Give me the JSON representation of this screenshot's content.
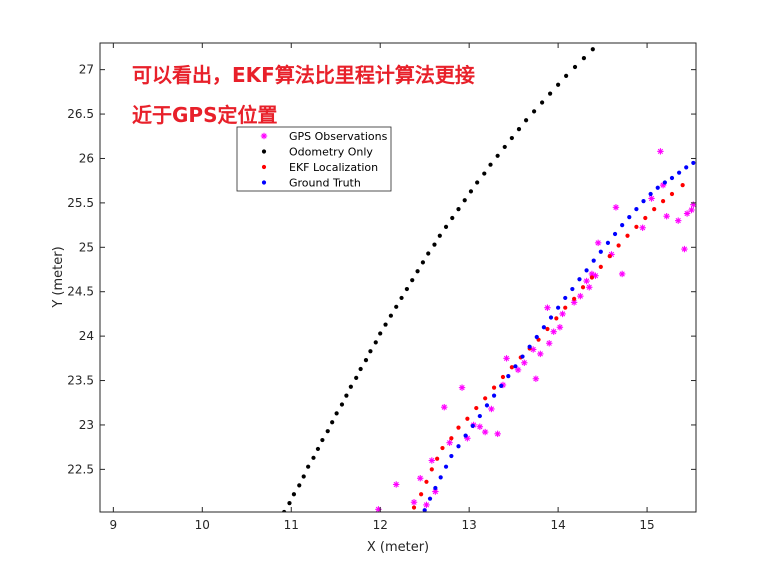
{
  "annotation": {
    "line1": "可以看出，EKF算法比里程计算法更接",
    "line2": "近于GPS定位置",
    "color": "#e8202a"
  },
  "chart_data": {
    "type": "scatter",
    "xlabel": "X (meter)",
    "ylabel": "Y (meter)",
    "xlim": [
      8.85,
      15.55
    ],
    "ylim": [
      22.02,
      27.3
    ],
    "xticks": [
      "9",
      "10",
      "11",
      "12",
      "13",
      "14",
      "15"
    ],
    "yticks": [
      "22.5",
      "23",
      "23.5",
      "24",
      "24.5",
      "25",
      "25.5",
      "26",
      "26.5",
      "27"
    ],
    "grid": false,
    "legend_position": "top-left",
    "series": [
      {
        "name": "GPS Observations",
        "marker": "star",
        "color": "#ff00ff",
        "points": [
          [
            11.98,
            22.05
          ],
          [
            12.18,
            22.33
          ],
          [
            12.38,
            22.13
          ],
          [
            12.45,
            22.4
          ],
          [
            12.52,
            22.1
          ],
          [
            12.58,
            22.6
          ],
          [
            12.62,
            22.25
          ],
          [
            12.72,
            23.2
          ],
          [
            12.78,
            22.8
          ],
          [
            12.92,
            23.42
          ],
          [
            12.98,
            22.85
          ],
          [
            13.05,
            23.0
          ],
          [
            13.12,
            22.98
          ],
          [
            13.18,
            22.92
          ],
          [
            13.25,
            23.18
          ],
          [
            13.32,
            22.9
          ],
          [
            13.38,
            23.45
          ],
          [
            13.42,
            23.75
          ],
          [
            13.55,
            23.62
          ],
          [
            13.62,
            23.7
          ],
          [
            13.72,
            23.85
          ],
          [
            13.75,
            23.52
          ],
          [
            13.8,
            23.8
          ],
          [
            13.88,
            24.32
          ],
          [
            13.9,
            23.92
          ],
          [
            13.95,
            24.05
          ],
          [
            14.02,
            24.1
          ],
          [
            14.05,
            24.25
          ],
          [
            14.18,
            24.38
          ],
          [
            14.25,
            24.45
          ],
          [
            14.32,
            24.62
          ],
          [
            14.35,
            24.55
          ],
          [
            14.38,
            24.7
          ],
          [
            14.42,
            24.68
          ],
          [
            14.45,
            25.05
          ],
          [
            14.6,
            24.92
          ],
          [
            14.65,
            25.45
          ],
          [
            14.72,
            24.7
          ],
          [
            14.95,
            25.22
          ],
          [
            15.05,
            25.55
          ],
          [
            15.15,
            26.08
          ],
          [
            15.18,
            25.7
          ],
          [
            15.22,
            25.35
          ],
          [
            15.35,
            25.3
          ],
          [
            15.42,
            24.98
          ],
          [
            15.45,
            25.38
          ],
          [
            15.5,
            25.42
          ],
          [
            15.52,
            25.48
          ]
        ]
      },
      {
        "name": "Odometry Only",
        "marker": "dot",
        "color": "#000000",
        "points": [
          [
            10.92,
            22.02
          ],
          [
            10.98,
            22.12
          ],
          [
            11.03,
            22.22
          ],
          [
            11.09,
            22.32
          ],
          [
            11.14,
            22.42
          ],
          [
            11.19,
            22.53
          ],
          [
            11.25,
            22.63
          ],
          [
            11.3,
            22.73
          ],
          [
            11.35,
            22.83
          ],
          [
            11.41,
            22.93
          ],
          [
            11.46,
            23.03
          ],
          [
            11.51,
            23.13
          ],
          [
            11.57,
            23.23
          ],
          [
            11.62,
            23.33
          ],
          [
            11.67,
            23.43
          ],
          [
            11.73,
            23.53
          ],
          [
            11.78,
            23.63
          ],
          [
            11.84,
            23.73
          ],
          [
            11.89,
            23.83
          ],
          [
            11.95,
            23.93
          ],
          [
            12.0,
            24.03
          ],
          [
            12.06,
            24.13
          ],
          [
            12.12,
            24.23
          ],
          [
            12.18,
            24.33
          ],
          [
            12.24,
            24.43
          ],
          [
            12.3,
            24.53
          ],
          [
            12.36,
            24.63
          ],
          [
            12.42,
            24.73
          ],
          [
            12.48,
            24.83
          ],
          [
            12.54,
            24.93
          ],
          [
            12.61,
            25.03
          ],
          [
            12.67,
            25.13
          ],
          [
            12.74,
            25.23
          ],
          [
            12.81,
            25.33
          ],
          [
            12.88,
            25.43
          ],
          [
            12.95,
            25.53
          ],
          [
            13.02,
            25.63
          ],
          [
            13.09,
            25.73
          ],
          [
            13.17,
            25.83
          ],
          [
            13.24,
            25.93
          ],
          [
            13.32,
            26.03
          ],
          [
            13.4,
            26.13
          ],
          [
            13.48,
            26.23
          ],
          [
            13.56,
            26.33
          ],
          [
            13.64,
            26.43
          ],
          [
            13.73,
            26.53
          ],
          [
            13.82,
            26.63
          ],
          [
            13.91,
            26.73
          ],
          [
            14.0,
            26.83
          ],
          [
            14.09,
            26.93
          ],
          [
            14.19,
            27.03
          ],
          [
            14.29,
            27.13
          ],
          [
            14.39,
            27.23
          ]
        ]
      },
      {
        "name": "EKF Localization",
        "marker": "dot",
        "color": "#ff0000",
        "points": [
          [
            12.38,
            22.07
          ],
          [
            12.46,
            22.22
          ],
          [
            12.52,
            22.36
          ],
          [
            12.58,
            22.5
          ],
          [
            12.64,
            22.62
          ],
          [
            12.7,
            22.74
          ],
          [
            12.8,
            22.85
          ],
          [
            12.88,
            22.97
          ],
          [
            12.98,
            23.07
          ],
          [
            13.08,
            23.19
          ],
          [
            13.18,
            23.3
          ],
          [
            13.28,
            23.42
          ],
          [
            13.38,
            23.54
          ],
          [
            13.48,
            23.65
          ],
          [
            13.58,
            23.76
          ],
          [
            13.68,
            23.86
          ],
          [
            13.78,
            23.96
          ],
          [
            13.88,
            24.08
          ],
          [
            13.98,
            24.2
          ],
          [
            14.08,
            24.32
          ],
          [
            14.18,
            24.42
          ],
          [
            14.28,
            24.55
          ],
          [
            14.38,
            24.66
          ],
          [
            14.48,
            24.78
          ],
          [
            14.58,
            24.9
          ],
          [
            14.68,
            25.02
          ],
          [
            14.78,
            25.13
          ],
          [
            14.88,
            25.23
          ],
          [
            14.98,
            25.33
          ],
          [
            15.08,
            25.43
          ],
          [
            15.18,
            25.52
          ],
          [
            15.28,
            25.6
          ],
          [
            15.4,
            25.7
          ]
        ]
      },
      {
        "name": "Ground Truth",
        "marker": "dot",
        "color": "#0000ff",
        "points": [
          [
            12.5,
            22.04
          ],
          [
            12.56,
            22.17
          ],
          [
            12.62,
            22.29
          ],
          [
            12.68,
            22.41
          ],
          [
            12.74,
            22.53
          ],
          [
            12.8,
            22.65
          ],
          [
            12.88,
            22.76
          ],
          [
            12.96,
            22.88
          ],
          [
            13.04,
            22.99
          ],
          [
            13.12,
            23.1
          ],
          [
            13.2,
            23.22
          ],
          [
            13.28,
            23.33
          ],
          [
            13.36,
            23.44
          ],
          [
            13.44,
            23.55
          ],
          [
            13.52,
            23.66
          ],
          [
            13.6,
            23.77
          ],
          [
            13.68,
            23.88
          ],
          [
            13.76,
            23.99
          ],
          [
            13.84,
            24.1
          ],
          [
            13.92,
            24.21
          ],
          [
            14.0,
            24.32
          ],
          [
            14.08,
            24.43
          ],
          [
            14.16,
            24.53
          ],
          [
            14.24,
            24.64
          ],
          [
            14.32,
            24.74
          ],
          [
            14.4,
            24.85
          ],
          [
            14.48,
            24.95
          ],
          [
            14.56,
            25.05
          ],
          [
            14.64,
            25.15
          ],
          [
            14.72,
            25.25
          ],
          [
            14.8,
            25.34
          ],
          [
            14.88,
            25.43
          ],
          [
            14.96,
            25.52
          ],
          [
            15.04,
            25.6
          ],
          [
            15.12,
            25.67
          ],
          [
            15.2,
            25.73
          ],
          [
            15.28,
            25.78
          ],
          [
            15.36,
            25.84
          ],
          [
            15.44,
            25.9
          ],
          [
            15.52,
            25.95
          ]
        ]
      }
    ]
  }
}
